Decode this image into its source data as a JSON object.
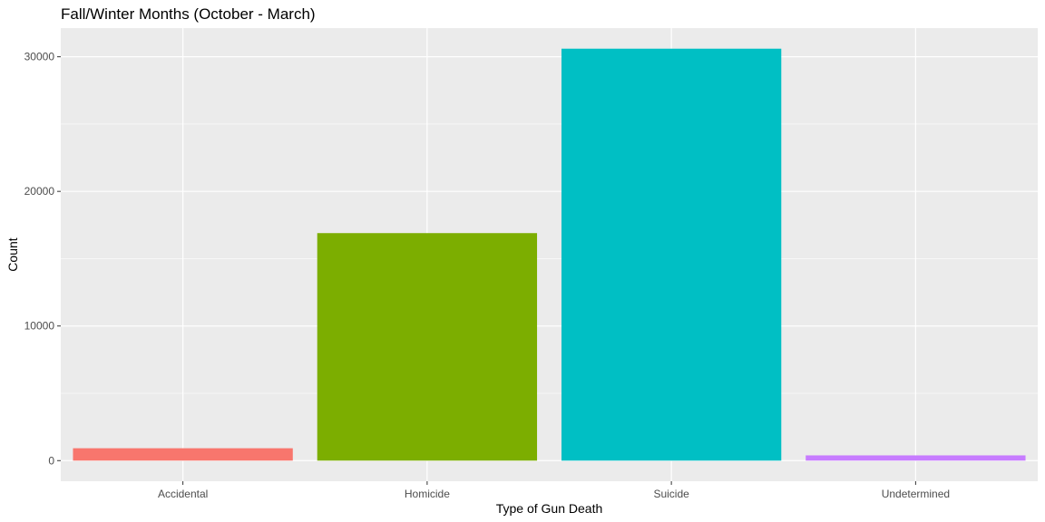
{
  "chart_data": {
    "type": "bar",
    "title": "Fall/Winter Months (October - March)",
    "xlabel": "Type of Gun Death",
    "ylabel": "Count",
    "categories": [
      "Accidental",
      "Homicide",
      "Suicide",
      "Undetermined"
    ],
    "values": [
      920,
      16900,
      30600,
      390
    ],
    "colors": [
      "#F8766D",
      "#7CAE00",
      "#00BFC4",
      "#C77CFF"
    ],
    "ylim": [
      -1530,
      32130
    ],
    "yticks": [
      0,
      10000,
      20000,
      30000
    ],
    "ytick_labels": [
      "0",
      "10000",
      "20000",
      "30000"
    ],
    "grid": true,
    "legend": "none",
    "panel_background": "#EBEBEB"
  }
}
